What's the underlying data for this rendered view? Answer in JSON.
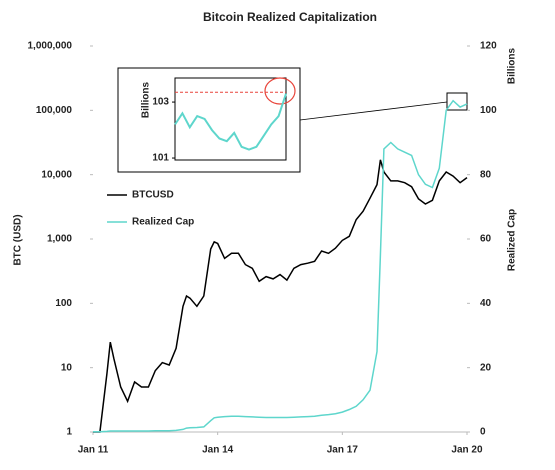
{
  "chart_data": {
    "type": "line",
    "title": "Bitcoin Realized Capitalization",
    "ylabel": "BTC (USD)",
    "y2label": "Realized Cap",
    "y2unit": "Billions",
    "log_y": true,
    "grid": false,
    "legend": "upper left",
    "x": [
      "2011-01",
      "2011-03",
      "2011-05",
      "2011-06",
      "2011-07",
      "2011-09",
      "2011-11",
      "2012-01",
      "2012-03",
      "2012-05",
      "2012-07",
      "2012-09",
      "2012-11",
      "2013-01",
      "2013-03",
      "2013-04",
      "2013-05",
      "2013-07",
      "2013-09",
      "2013-11",
      "2013-12",
      "2014-01",
      "2014-03",
      "2014-05",
      "2014-07",
      "2014-09",
      "2014-11",
      "2015-01",
      "2015-03",
      "2015-05",
      "2015-07",
      "2015-09",
      "2015-11",
      "2016-01",
      "2016-03",
      "2016-05",
      "2016-07",
      "2016-09",
      "2016-11",
      "2017-01",
      "2017-03",
      "2017-05",
      "2017-07",
      "2017-09",
      "2017-11",
      "2017-12",
      "2018-01",
      "2018-03",
      "2018-05",
      "2018-07",
      "2018-09",
      "2018-11",
      "2019-01",
      "2019-03",
      "2019-05",
      "2019-07",
      "2019-09",
      "2019-11",
      "2020-01"
    ],
    "xlim": [
      "2011-01",
      "2020-01"
    ],
    "xticks": [
      {
        "value": "2011-01",
        "label": "Jan 11"
      },
      {
        "value": "2014-01",
        "label": "Jan 14"
      },
      {
        "value": "2017-01",
        "label": "Jan 17"
      },
      {
        "value": "2020-01",
        "label": "Jan 20"
      }
    ],
    "ylim": [
      1,
      1000000
    ],
    "yticks": [
      1,
      10,
      100,
      {
        "value": 1000,
        "label": "1,000"
      },
      {
        "value": 10000,
        "label": "10,000"
      },
      {
        "value": 100000,
        "label": "100,000"
      },
      {
        "value": 1000000,
        "label": "1,000,000"
      }
    ],
    "y2lim": [
      0,
      120
    ],
    "y2ticks": [
      0,
      20,
      40,
      60,
      80,
      100,
      120
    ],
    "series": [
      {
        "name": "BTCUSD",
        "color": "#000000",
        "axis": "y",
        "values": [
          1,
          1,
          8,
          25,
          14,
          5,
          3,
          6,
          5,
          5,
          9,
          12,
          11,
          20,
          90,
          130,
          120,
          90,
          130,
          700,
          900,
          850,
          500,
          600,
          600,
          400,
          350,
          220,
          260,
          240,
          280,
          230,
          350,
          400,
          420,
          450,
          650,
          600,
          720,
          950,
          1100,
          2000,
          2700,
          4300,
          7000,
          17000,
          11000,
          8000,
          8000,
          7500,
          6500,
          4200,
          3500,
          4000,
          8000,
          11000,
          9500,
          7500,
          9000
        ]
      },
      {
        "name": "Realized Cap",
        "color": "#5ed6cc",
        "axis": "y2",
        "values": [
          0.1,
          0.1,
          0.2,
          0.3,
          0.3,
          0.3,
          0.3,
          0.3,
          0.3,
          0.3,
          0.4,
          0.4,
          0.4,
          0.5,
          0.8,
          1.2,
          1.3,
          1.4,
          1.6,
          3.5,
          4.4,
          4.6,
          4.8,
          4.9,
          4.9,
          4.8,
          4.7,
          4.6,
          4.5,
          4.5,
          4.5,
          4.5,
          4.6,
          4.7,
          4.8,
          4.9,
          5.2,
          5.4,
          5.7,
          6.2,
          7,
          8,
          10,
          13,
          25,
          55,
          88,
          90,
          88,
          87,
          86,
          80,
          77,
          76,
          82,
          100,
          103,
          101,
          102
        ]
      }
    ],
    "inset": {
      "ylabel": "Billions",
      "ylim": [
        100.93,
        103.86
      ],
      "yticks": [
        101,
        103
      ],
      "reference_line": 103.35,
      "reference_color": "#e8443a",
      "values": [
        102.2,
        102.6,
        102.1,
        102.5,
        102.4,
        102.0,
        101.7,
        101.6,
        101.9,
        101.4,
        101.3,
        101.4,
        101.8,
        102.2,
        102.5,
        103.3
      ]
    }
  }
}
